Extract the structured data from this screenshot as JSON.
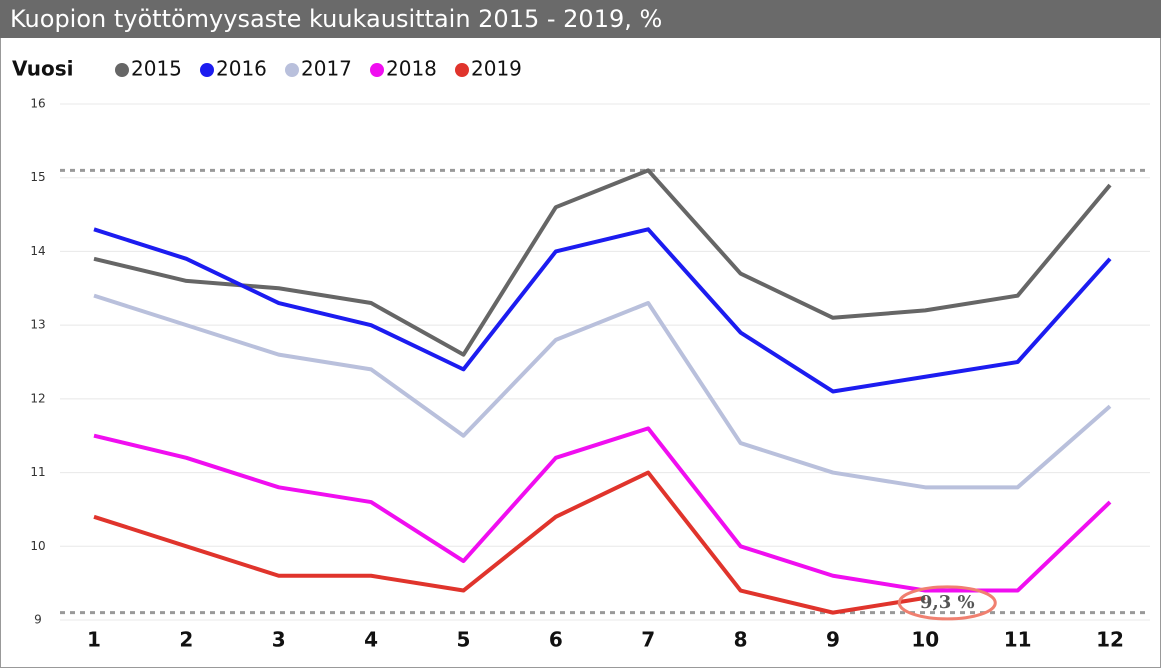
{
  "chart_data": {
    "type": "line",
    "title": "Kuopion työttömyysaste kuukausittain 2015 - 2019, %",
    "legend_title": "Vuosi",
    "categories": [
      "1",
      "2",
      "3",
      "4",
      "5",
      "6",
      "7",
      "8",
      "9",
      "10",
      "11",
      "12"
    ],
    "series": [
      {
        "name": "2015",
        "color": "#666666",
        "values": [
          13.9,
          13.6,
          13.5,
          13.3,
          12.6,
          14.6,
          15.1,
          13.7,
          13.1,
          13.2,
          13.4,
          14.9
        ]
      },
      {
        "name": "2016",
        "color": "#1c1cf0",
        "values": [
          14.3,
          13.9,
          13.3,
          13.0,
          12.4,
          14.0,
          14.3,
          12.9,
          12.1,
          12.3,
          12.5,
          13.9
        ]
      },
      {
        "name": "2017",
        "color": "#b9c0dc",
        "values": [
          13.4,
          13.0,
          12.6,
          12.4,
          11.5,
          12.8,
          13.3,
          11.4,
          11.0,
          10.8,
          10.8,
          11.9
        ]
      },
      {
        "name": "2018",
        "color": "#f00ef0",
        "values": [
          11.5,
          11.2,
          10.8,
          10.6,
          9.8,
          11.2,
          11.6,
          10.0,
          9.6,
          9.4,
          9.4,
          10.6
        ]
      },
      {
        "name": "2019",
        "color": "#e0342c",
        "values": [
          10.4,
          10.0,
          9.6,
          9.6,
          9.4,
          10.4,
          11.0,
          9.4,
          9.1,
          9.3,
          null,
          null
        ]
      }
    ],
    "ylim": [
      9,
      16
    ],
    "yticks": [
      9,
      10,
      11,
      12,
      13,
      14,
      15,
      16
    ],
    "grid": true,
    "reference_lines": [
      15.1,
      9.1
    ],
    "annotation": {
      "text": "9,3 %",
      "category": "10",
      "value": 9.3
    }
  }
}
